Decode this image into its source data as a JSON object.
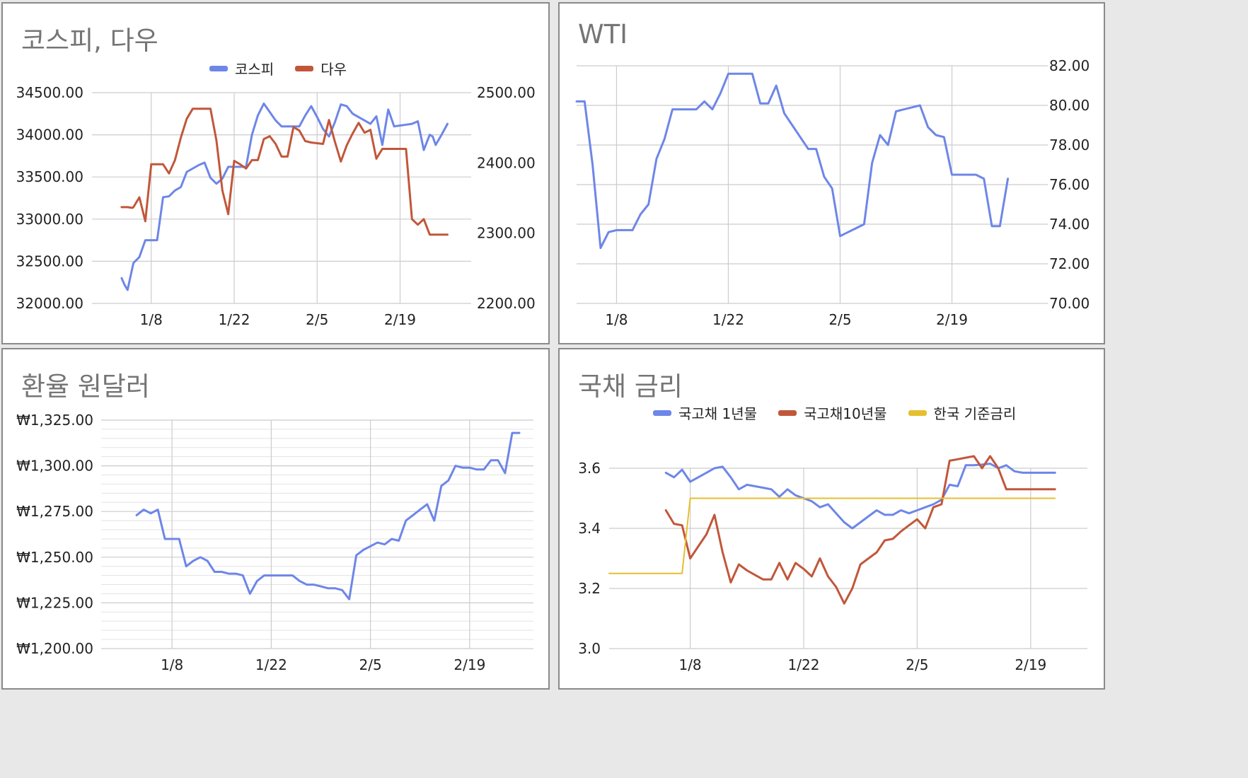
{
  "colors": {
    "blue": "#6d86e8",
    "red": "#c1573a",
    "yellow": "#e6bf2f",
    "grid": "#cccccc"
  },
  "chart_data": [
    {
      "type": "line",
      "title": "코스피, 다우",
      "x_ticks": [
        "1/8",
        "1/22",
        "2/5",
        "2/19"
      ],
      "left_ticks": [
        "32000.00",
        "32500.00",
        "33000.00",
        "33500.00",
        "34000.00",
        "34500.00"
      ],
      "right_ticks": [
        "2200.00",
        "2300.00",
        "2400.00",
        "2500.00"
      ],
      "ylim_left": [
        32000,
        34500
      ],
      "ylim_right": [
        2200,
        2500
      ],
      "legend_position": "top",
      "series": [
        {
          "name": "코스피",
          "color": "#6d86e8",
          "axis": "left",
          "x": [
            1,
            1.5,
            2,
            3,
            4,
            5,
            6,
            7,
            8,
            9,
            10,
            11,
            12,
            14,
            15,
            16,
            17,
            18,
            19,
            20,
            21,
            22,
            23,
            24,
            25,
            26,
            27,
            28,
            29,
            30,
            31,
            32,
            33,
            34,
            35,
            36,
            37,
            38,
            39,
            40,
            41,
            42,
            43,
            44,
            45,
            46,
            47,
            48,
            49,
            50,
            51,
            52,
            53,
            53.5,
            54,
            55,
            56
          ],
          "values": [
            32300,
            32220,
            32160,
            32480,
            32550,
            32750,
            32750,
            32750,
            33260,
            33270,
            33340,
            33380,
            33560,
            33640,
            33670,
            33490,
            33420,
            33480,
            33620,
            33620,
            33620,
            33620,
            34000,
            34230,
            34370,
            34270,
            34170,
            34100,
            34100,
            34100,
            34100,
            34230,
            34340,
            34210,
            34070,
            33980,
            34150,
            34360,
            34340,
            34250,
            34210,
            34170,
            34130,
            34220,
            33880,
            34300,
            34100,
            34110,
            34120,
            34130,
            34160,
            33820,
            34000,
            33980,
            33880,
            34000,
            34130
          ]
        },
        {
          "name": "다우",
          "color": "#c1573a",
          "axis": "right",
          "x": [
            1,
            2,
            2.8,
            3,
            4,
            5,
            6,
            7,
            8,
            9,
            10,
            11,
            12,
            13,
            14,
            15,
            16,
            17,
            18,
            19,
            20,
            21,
            22,
            23,
            24,
            25,
            26,
            27,
            28,
            29,
            30,
            31,
            32,
            33,
            34,
            35,
            36,
            37,
            38,
            39,
            40,
            41,
            42,
            43,
            44,
            45,
            46,
            47,
            48,
            49,
            50,
            51,
            52,
            53,
            54,
            55,
            56
          ],
          "values": [
            2337,
            2337,
            2336,
            2337,
            2351,
            2317,
            2398,
            2398,
            2398,
            2385,
            2404,
            2436,
            2463,
            2477,
            2477,
            2477,
            2477,
            2432,
            2361,
            2327,
            2403,
            2398,
            2392,
            2404,
            2404,
            2434,
            2438,
            2427,
            2409,
            2409,
            2451,
            2446,
            2431,
            2429,
            2428,
            2427,
            2461,
            2430,
            2402,
            2425,
            2442,
            2457,
            2443,
            2447,
            2406,
            2420,
            2420,
            2420,
            2420,
            2420,
            2320,
            2312,
            2320,
            2298,
            2298,
            2298,
            2298
          ]
        }
      ]
    },
    {
      "type": "line",
      "title": "WTI",
      "x_ticks": [
        "1/8",
        "1/22",
        "2/5",
        "2/19"
      ],
      "right_ticks": [
        "70.00",
        "72.00",
        "74.00",
        "76.00",
        "78.00",
        "80.00",
        "82.00"
      ],
      "ylim_right": [
        70,
        82
      ],
      "series": [
        {
          "name": "",
          "color": "#6d86e8",
          "axis": "right",
          "x": [
            1,
            2,
            3,
            4,
            5,
            6,
            7,
            8,
            9,
            10,
            11,
            12,
            13,
            14,
            15,
            16,
            17,
            18,
            19,
            20,
            21,
            22,
            23,
            24,
            25,
            26,
            27,
            28,
            29,
            30,
            31,
            32,
            33,
            34,
            35,
            36,
            37,
            38,
            39,
            40,
            41,
            42,
            43,
            44,
            45,
            46,
            47,
            48,
            49,
            50,
            51,
            52,
            53,
            54,
            55
          ],
          "values": [
            80.2,
            80.2,
            77.0,
            72.8,
            73.6,
            73.7,
            73.7,
            73.7,
            74.5,
            75.0,
            77.3,
            78.3,
            79.8,
            79.8,
            79.8,
            79.8,
            80.2,
            79.8,
            80.6,
            81.6,
            81.6,
            81.6,
            81.6,
            80.1,
            80.1,
            81.0,
            79.6,
            79.0,
            78.4,
            77.8,
            77.8,
            76.4,
            75.8,
            73.4,
            73.6,
            73.8,
            74.0,
            77.1,
            78.5,
            78.0,
            79.7,
            79.8,
            79.9,
            80.0,
            78.9,
            78.5,
            78.4,
            76.5,
            76.5,
            76.5,
            76.5,
            76.3,
            73.9,
            73.9,
            76.3
          ]
        }
      ]
    },
    {
      "type": "line",
      "title": "환율 원달러",
      "x_ticks": [
        "1/8",
        "1/22",
        "2/5",
        "2/19"
      ],
      "left_ticks": [
        "₩1,200.00",
        "₩1,225.00",
        "₩1,250.00",
        "₩1,275.00",
        "₩1,300.00",
        "₩1,325.00"
      ],
      "ylim_left": [
        1200,
        1325
      ],
      "series": [
        {
          "name": "",
          "color": "#6d86e8",
          "axis": "left",
          "x": [
            1,
            2,
            3,
            4,
            5,
            6,
            7,
            8,
            9,
            10,
            11,
            12,
            13,
            14,
            15,
            16,
            17,
            18,
            19,
            20,
            21,
            22,
            23,
            24,
            25,
            26,
            27,
            28,
            29,
            30,
            31,
            32,
            33,
            34,
            35,
            36,
            37,
            38,
            39,
            40,
            41,
            42,
            43,
            44,
            45,
            46,
            47,
            48,
            49,
            50,
            51,
            52,
            53,
            54,
            55
          ],
          "values": [
            1273,
            1276,
            1274,
            1276,
            1260,
            1260,
            1260,
            1245,
            1248,
            1250,
            1248,
            1242,
            1242,
            1241,
            1241,
            1240,
            1230,
            1237,
            1240,
            1240,
            1240,
            1240,
            1240,
            1237,
            1235,
            1235,
            1234,
            1233,
            1233,
            1232,
            1227,
            1251,
            1254,
            1256,
            1258,
            1257,
            1260,
            1259,
            1270,
            1273,
            1276,
            1279,
            1270,
            1289,
            1292,
            1300,
            1299,
            1299,
            1298,
            1298,
            1303,
            1303,
            1296,
            1318,
            1318
          ]
        }
      ]
    },
    {
      "type": "line",
      "title": "국채 금리",
      "x_ticks": [
        "1/8",
        "1/22",
        "2/5",
        "2/19"
      ],
      "left_ticks": [
        "3.0",
        "3.2",
        "3.4",
        "3.6"
      ],
      "ylim_left": [
        3.0,
        3.6
      ],
      "legend_position": "top",
      "series": [
        {
          "name": "국고채 1년물",
          "color": "#6d86e8",
          "axis": "left",
          "x": [
            3,
            4,
            5,
            6,
            7,
            8,
            9,
            10,
            11,
            12,
            13,
            14,
            15,
            16,
            17,
            18,
            19,
            20,
            21,
            22,
            23,
            24,
            25,
            26,
            27,
            28,
            29,
            30,
            31,
            32,
            33,
            34,
            35,
            36,
            37,
            38,
            39,
            40,
            41,
            42,
            43,
            44,
            45,
            46,
            47,
            48,
            49,
            50,
            51
          ],
          "values": [
            3.585,
            3.57,
            3.595,
            3.555,
            3.57,
            3.585,
            3.6,
            3.605,
            3.57,
            3.53,
            3.545,
            3.54,
            3.535,
            3.53,
            3.505,
            3.53,
            3.51,
            3.5,
            3.49,
            3.47,
            3.48,
            3.45,
            3.42,
            3.4,
            3.42,
            3.44,
            3.46,
            3.445,
            3.445,
            3.46,
            3.45,
            3.46,
            3.47,
            3.48,
            3.495,
            3.545,
            3.54,
            3.61,
            3.61,
            3.612,
            3.615,
            3.6,
            3.61,
            3.59,
            3.585,
            3.585,
            3.585,
            3.585,
            3.585
          ]
        },
        {
          "name": "국고채10년물",
          "color": "#c1573a",
          "axis": "left",
          "x": [
            3,
            4,
            5,
            6,
            7,
            8,
            9,
            10,
            11,
            12,
            13,
            14,
            15,
            16,
            17,
            18,
            19,
            20,
            21,
            22,
            23,
            24,
            25,
            26,
            27,
            28,
            29,
            30,
            31,
            32,
            33,
            34,
            35,
            36,
            37,
            38,
            39,
            40,
            41,
            42,
            43,
            44,
            45,
            46,
            47,
            48,
            49,
            50,
            51
          ],
          "values": [
            3.46,
            3.415,
            3.41,
            3.3,
            3.34,
            3.38,
            3.445,
            3.32,
            3.22,
            3.28,
            3.26,
            3.245,
            3.23,
            3.23,
            3.285,
            3.23,
            3.285,
            3.265,
            3.24,
            3.3,
            3.24,
            3.205,
            3.15,
            3.2,
            3.28,
            3.3,
            3.32,
            3.36,
            3.365,
            3.39,
            3.41,
            3.43,
            3.4,
            3.47,
            3.48,
            3.625,
            3.63,
            3.635,
            3.64,
            3.6,
            3.64,
            3.6,
            3.53,
            3.53,
            3.53,
            3.53,
            3.53,
            3.53,
            3.53
          ]
        },
        {
          "name": "한국 기준금리",
          "color": "#e6bf2f",
          "axis": "left",
          "x": [
            -4,
            5,
            6,
            51
          ],
          "values": [
            3.25,
            3.25,
            3.5,
            3.5
          ]
        }
      ]
    }
  ]
}
